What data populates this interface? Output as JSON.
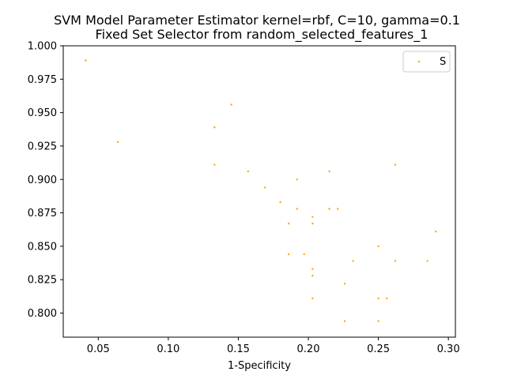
{
  "chart_data": {
    "type": "scatter",
    "title_line1": "SVM Model Parameter Estimator kernel=rbf, C=10, gamma=0.1",
    "title_line2": "Fixed Set Selector from random_selected_features_1",
    "xlabel": "1-Specificity",
    "ylabel": "",
    "xlim": [
      0.025,
      0.305
    ],
    "ylim": [
      0.782,
      1.0
    ],
    "xticks": [
      0.05,
      0.1,
      0.15,
      0.2,
      0.25,
      0.3
    ],
    "xtick_labels": [
      "0.05",
      "0.10",
      "0.15",
      "0.20",
      "0.25",
      "0.30"
    ],
    "yticks": [
      0.8,
      0.825,
      0.85,
      0.875,
      0.9,
      0.925,
      0.95,
      0.975,
      1.0
    ],
    "ytick_labels": [
      "0.800",
      "0.825",
      "0.850",
      "0.875",
      "0.900",
      "0.925",
      "0.950",
      "0.975",
      "1.000"
    ],
    "grid": false,
    "legend_position": "top-right",
    "series": [
      {
        "name": "S",
        "color": "#ffa500",
        "points": [
          [
            0.041,
            0.989
          ],
          [
            0.064,
            0.928
          ],
          [
            0.133,
            0.939
          ],
          [
            0.133,
            0.911
          ],
          [
            0.145,
            0.956
          ],
          [
            0.157,
            0.906
          ],
          [
            0.169,
            0.894
          ],
          [
            0.18,
            0.883
          ],
          [
            0.186,
            0.867
          ],
          [
            0.186,
            0.844
          ],
          [
            0.192,
            0.9
          ],
          [
            0.192,
            0.878
          ],
          [
            0.197,
            0.844
          ],
          [
            0.203,
            0.872
          ],
          [
            0.203,
            0.867
          ],
          [
            0.203,
            0.833
          ],
          [
            0.203,
            0.828
          ],
          [
            0.203,
            0.811
          ],
          [
            0.215,
            0.906
          ],
          [
            0.215,
            0.878
          ],
          [
            0.221,
            0.878
          ],
          [
            0.226,
            0.822
          ],
          [
            0.226,
            0.794
          ],
          [
            0.232,
            0.839
          ],
          [
            0.25,
            0.85
          ],
          [
            0.25,
            0.811
          ],
          [
            0.25,
            0.794
          ],
          [
            0.256,
            0.811
          ],
          [
            0.262,
            0.911
          ],
          [
            0.262,
            0.839
          ],
          [
            0.285,
            0.839
          ],
          [
            0.291,
            0.861
          ]
        ]
      }
    ]
  }
}
